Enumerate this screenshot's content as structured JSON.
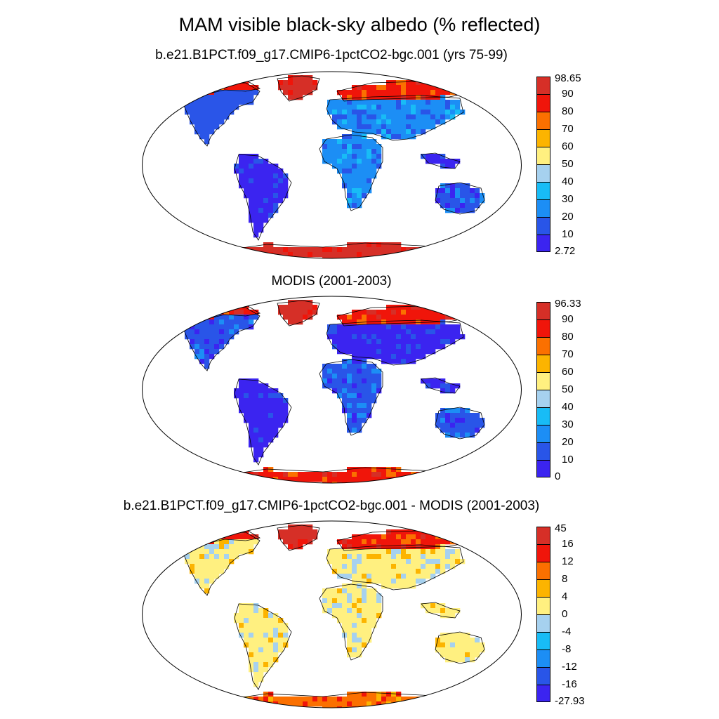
{
  "title": "MAM visible black-sky albedo (% reflected)",
  "panels": [
    {
      "id": "model",
      "title": "b.e21.B1PCT.f09_g17.CMIP6-1pctCO2-bgc.001 (yrs 75-99)",
      "colorbar": {
        "labels": [
          "98.65",
          "90",
          "80",
          "70",
          "60",
          "50",
          "40",
          "30",
          "20",
          "10",
          "2.72"
        ],
        "colors_top_to_bottom": [
          "#d62f27",
          "#f0150a",
          "#fb7000",
          "#fcb400",
          "#fff080",
          "#a6d1ef",
          "#18bcf6",
          "#1c8ef5",
          "#2955e8",
          "#3b24f0"
        ]
      },
      "regions": {
        "antarctica": "#d62f27",
        "greenland": "#d62f27",
        "north_america": "#2a55e8",
        "high_north": "#f0150a",
        "south_america": "#3b24f0",
        "africa": "#1c8ef5",
        "eurasia": "#1c8ef5",
        "australia": "#2955e8",
        "maritime": "#3b24f0"
      }
    },
    {
      "id": "obs",
      "title": "MODIS (2001-2003)",
      "colorbar": {
        "labels": [
          "96.33",
          "90",
          "80",
          "70",
          "60",
          "50",
          "40",
          "30",
          "20",
          "10",
          "0"
        ],
        "colors_top_to_bottom": [
          "#d62f27",
          "#f0150a",
          "#fb7000",
          "#fcb400",
          "#fff080",
          "#a6d1ef",
          "#18bcf6",
          "#1c8ef5",
          "#2955e8",
          "#3b24f0"
        ]
      },
      "regions": {
        "antarctica": "#f0150a",
        "greenland": "#d62f27",
        "north_america": "#2955e8",
        "high_north": "#f0150a",
        "south_america": "#3b24f0",
        "africa": "#2955e8",
        "eurasia": "#3b24f0",
        "australia": "#2955e8",
        "maritime": "#3b24f0"
      }
    },
    {
      "id": "diff",
      "title": "b.e21.B1PCT.f09_g17.CMIP6-1pctCO2-bgc.001 - MODIS (2001-2003)",
      "colorbar": {
        "labels": [
          "45",
          "16",
          "12",
          "8",
          "4",
          "0",
          "-4",
          "-8",
          "-12",
          "-16",
          "-27.93"
        ],
        "colors_top_to_bottom": [
          "#d62f27",
          "#f0150a",
          "#fb7000",
          "#fcb400",
          "#fff080",
          "#a6d1ef",
          "#18bcf6",
          "#1c8ef5",
          "#2955e8",
          "#3b24f0"
        ]
      },
      "regions": {
        "antarctica": "#fb7000",
        "greenland": "#d62f27",
        "north_america": "#fff080",
        "high_north": "#f0150a",
        "south_america": "#fff080",
        "africa": "#fff080",
        "eurasia": "#fff080",
        "australia": "#fff080",
        "maritime": "#fff080"
      }
    }
  ]
}
